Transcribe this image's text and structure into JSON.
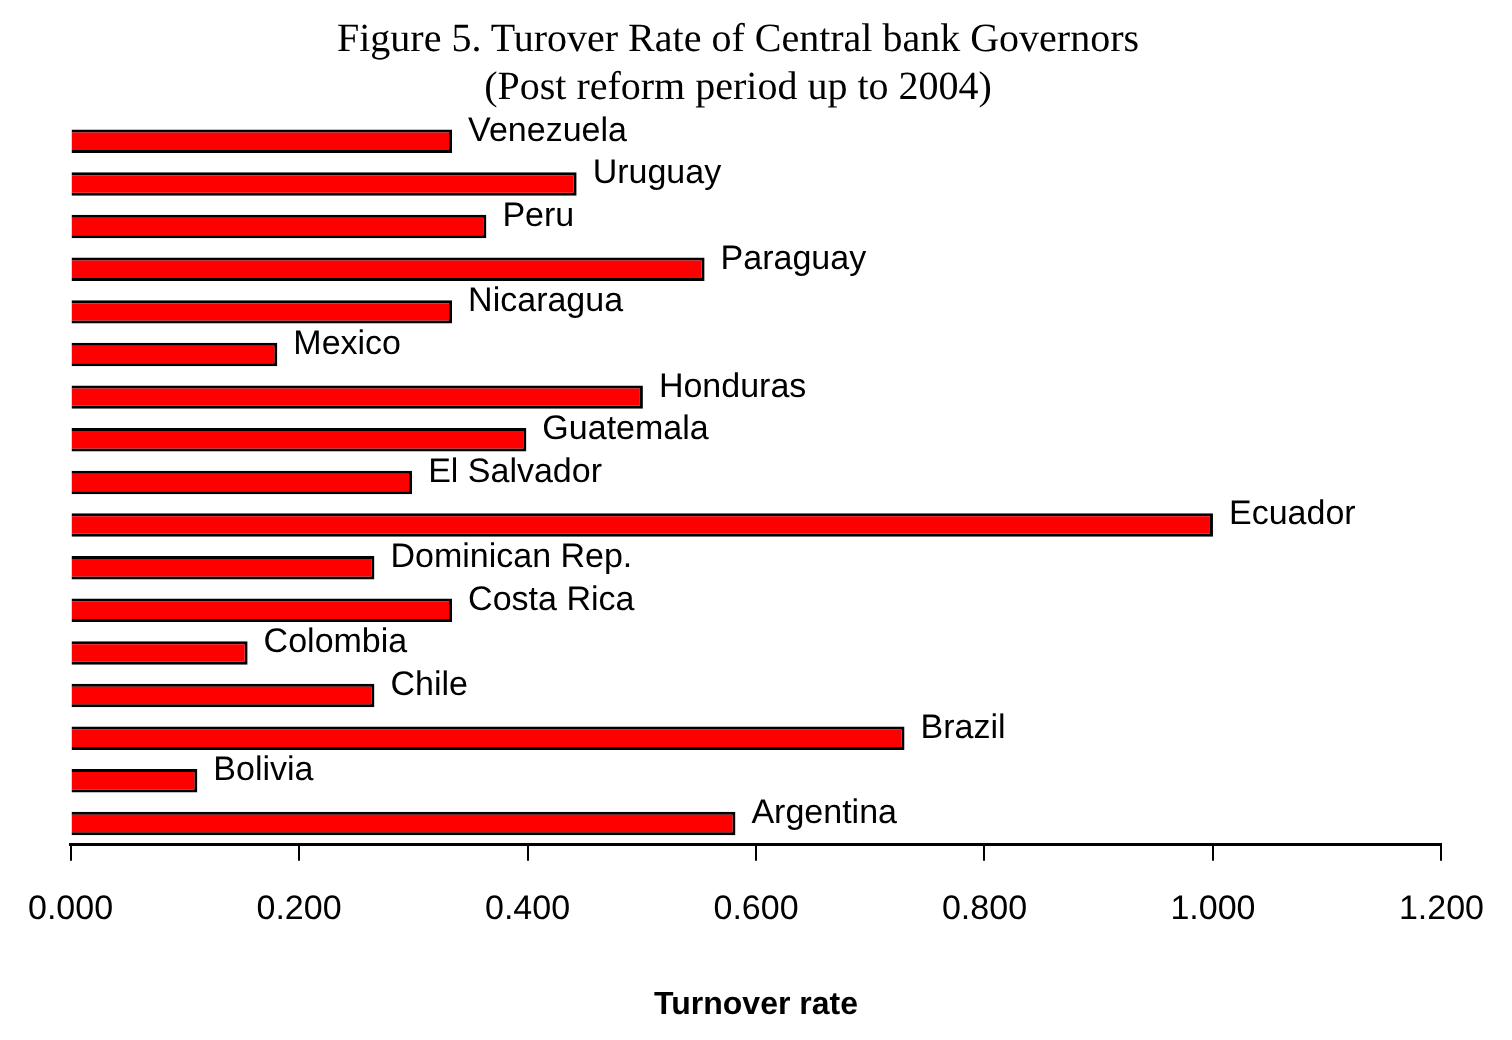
{
  "chart_data": {
    "type": "bar",
    "orientation": "horizontal",
    "title": "Figure 5. Turover Rate of Central bank Governors\n(Post reform period up to 2004)",
    "xlabel": "Turnover rate",
    "categories": [
      "Venezuela",
      "Uruguay",
      "Peru",
      "Paraguay",
      "Nicaragua",
      "Mexico",
      "Honduras",
      "Guatemala",
      "El Salvador",
      "Ecuador",
      "Dominican Rep.",
      "Costa Rica",
      "Colombia",
      "Chile",
      "Brazil",
      "Bolivia",
      "Argentina"
    ],
    "values": [
      0.334,
      0.443,
      0.364,
      0.555,
      0.334,
      0.181,
      0.501,
      0.399,
      0.299,
      1.0,
      0.266,
      0.334,
      0.155,
      0.266,
      0.73,
      0.111,
      0.582
    ],
    "color": "#ff0000",
    "xlim": [
      0,
      1.2
    ],
    "xticks": [
      {
        "value": 0,
        "label": "0.000"
      },
      {
        "value": 0.2,
        "label": "0.200"
      },
      {
        "value": 0.4,
        "label": "0.400"
      },
      {
        "value": 0.6,
        "label": "0.600"
      },
      {
        "value": 0.8,
        "label": "0.800"
      },
      {
        "value": 1.0,
        "label": "1.000"
      },
      {
        "value": 1.2,
        "label": "1.200"
      }
    ],
    "grid": false,
    "legend": false,
    "tick_labels": "x"
  }
}
